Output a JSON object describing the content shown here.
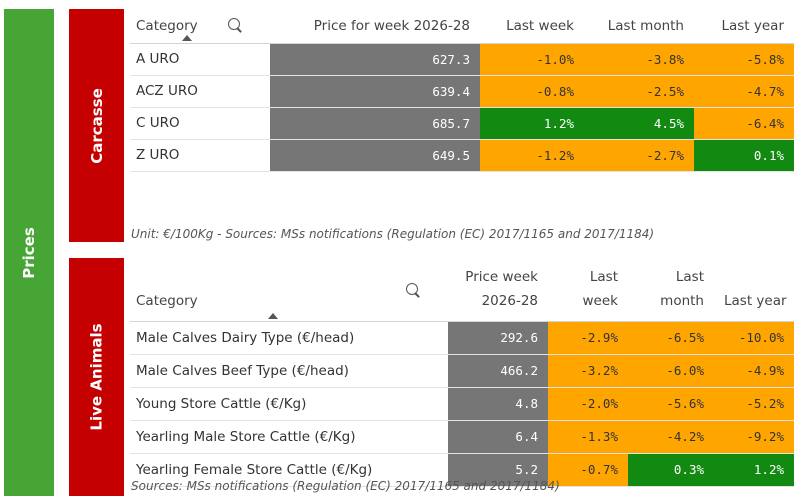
{
  "sections": {
    "prices": "Prices",
    "carcasse": "Carcasse",
    "live": "Live Animals"
  },
  "carcasse": {
    "headers": [
      "Category",
      "Price for week 2026-28",
      "Last week",
      "Last month",
      "Last year"
    ],
    "rows": [
      {
        "category": "A URO",
        "price": "627.3",
        "week": "-1.0%",
        "month": "-3.8%",
        "year": "-5.8%"
      },
      {
        "category": "ACZ URO",
        "price": "639.4",
        "week": "-0.8%",
        "month": "-2.5%",
        "year": "-4.7%"
      },
      {
        "category": "C URO",
        "price": "685.7",
        "week": "1.2%",
        "month": "4.5%",
        "year": "-6.4%"
      },
      {
        "category": "Z URO",
        "price": "649.5",
        "week": "-1.2%",
        "month": "-2.7%",
        "year": "0.1%"
      }
    ],
    "footnote": "Unit: €/100Kg - Sources: MSs notifications (Regulation (EC) 2017/1165 and 2017/1184)"
  },
  "live": {
    "headers": {
      "category": "Category",
      "price_l1": "Price week",
      "price_l2": "2026-28",
      "week_l1": "Last",
      "week_l2": "week",
      "month_l1": "Last",
      "month_l2": "month",
      "year": "Last year"
    },
    "rows": [
      {
        "category": "Male Calves Dairy Type (€/head)",
        "price": "292.6",
        "week": "-2.9%",
        "month": "-6.5%",
        "year": "-10.0%"
      },
      {
        "category": "Male Calves Beef Type (€/head)",
        "price": "466.2",
        "week": "-3.2%",
        "month": "-6.0%",
        "year": "-4.9%"
      },
      {
        "category": "Young Store Cattle (€/Kg)",
        "price": "4.8",
        "week": "-2.0%",
        "month": "-5.6%",
        "year": "-5.2%"
      },
      {
        "category": "Yearling Male Store Cattle (€/Kg)",
        "price": "6.4",
        "week": "-1.3%",
        "month": "-4.2%",
        "year": "-9.2%"
      },
      {
        "category": "Yearling Female Store Cattle (€/Kg)",
        "price": "5.2",
        "week": "-0.7%",
        "month": "0.3%",
        "year": "1.2%"
      }
    ],
    "footnote": "Sources: MSs notifications (Regulation (EC) 2017/1165 and 2017/1184)"
  },
  "colors": {
    "prices_bar": "#46a534",
    "section_bar": "#c40000",
    "price_cell": "#767676",
    "decrease": "#ffa500",
    "increase": "#128a12"
  },
  "icons": [
    "search-icon",
    "sort-ascending-icon"
  ]
}
